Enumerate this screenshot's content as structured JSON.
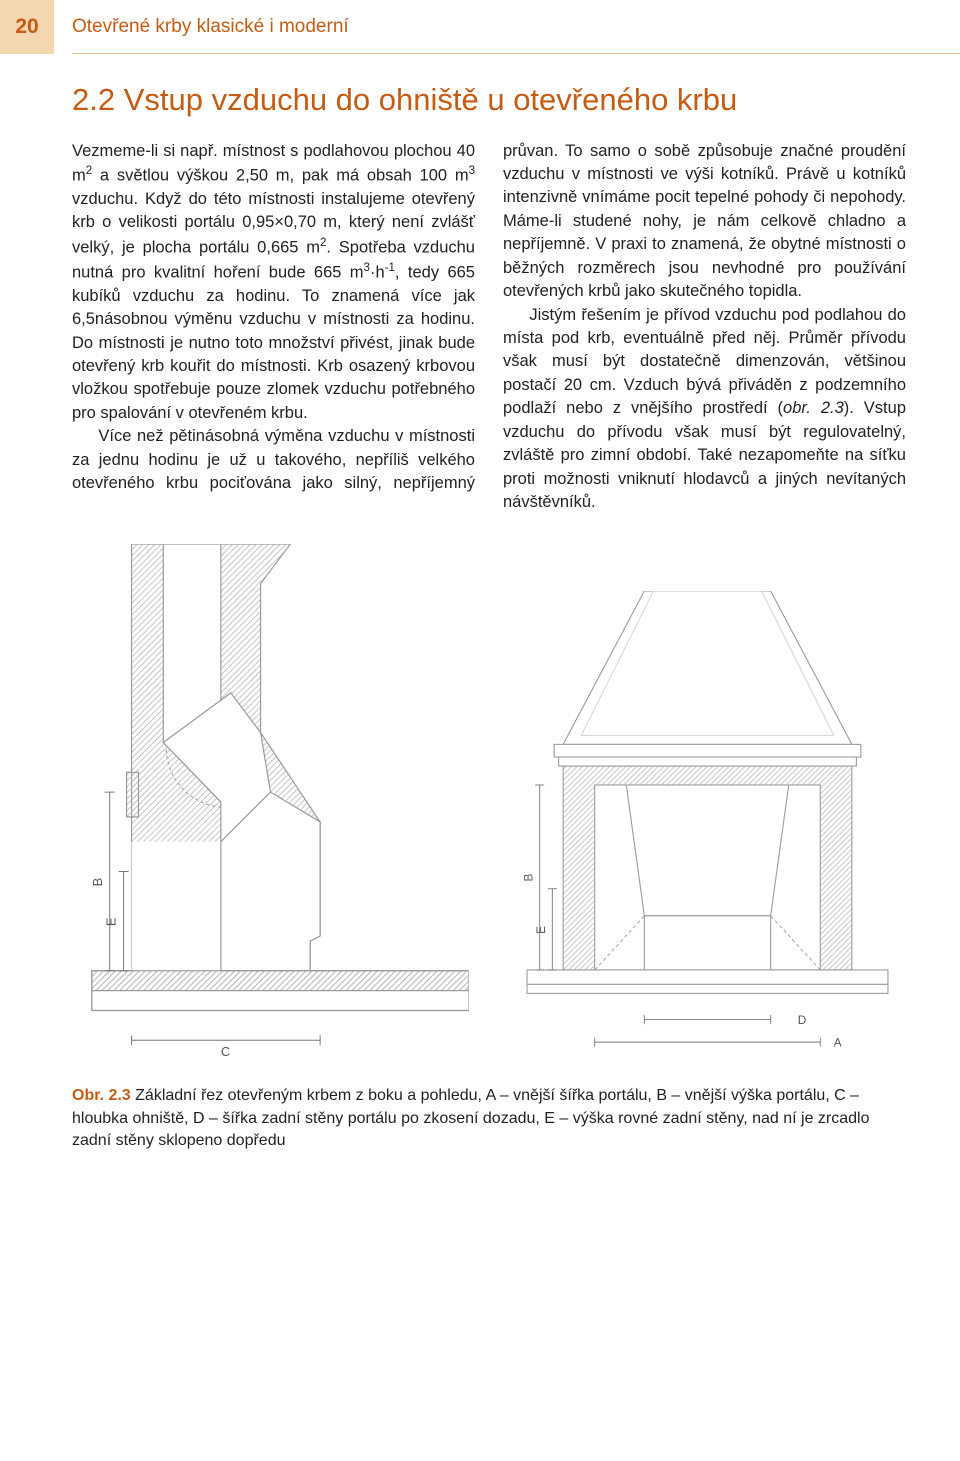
{
  "page_number": "20",
  "book_title": "Otevřené krby klasické i moderní",
  "section_title": "2.2  Vstup vzduchu do ohniště u otevřeného krbu",
  "body_html": "Vezmeme-li si např. místnost s podlahovou plochou 40 m<sup>2</sup> a světlou výškou 2,50 m, pak má obsah 100 m<sup>3</sup> vzduchu. Když do této místnosti instalujeme otevřený krb o velikosti portálu 0,95×0,70 m, který není zvlášť velký, je plocha portálu 0,665 m<sup>2</sup>. Spotřeba vzduchu nutná pro kvalitní hoření bude 665 m<sup>3</sup>·h<sup>-1</sup>, tedy 665 kubíků vzduchu za hodinu. To znamená více jak 6,5násobnou výměnu vzduchu v místnosti za hodinu. Do místnosti je nutno toto množství přivést, jinak bude otevřený krb kouřit do místnosti. Krb osazený krbovou vložkou spotřebuje pouze zlomek vzduchu potřebného pro spalování v otevřeném krbu.",
  "body2_html": "Více než pětinásobná výměna vzduchu v místnosti za jednu hodinu je už u takového, nepříliš velkého otevřeného krbu pociťována jako silný, nepříjemný průvan. To samo o sobě způsobuje značné proudění vzduchu v místnosti ve výši kotníků. Právě u kotníků intenzivně vnímáme pocit tepelné pohody či nepohody. Máme-li studené nohy, je nám celkově chladno a nepříjemně. V praxi to znamená, že obytné místnosti o běžných rozměrech jsou nevhodné pro používání otevřených krbů jako skutečného topidla.",
  "body3_html": "Jistým řešením je přívod vzduchu pod podlahou do místa pod krb, eventuálně před něj. Průměr přívodu však musí být dostatečně dimenzován, většinou postačí 20 cm. Vzduch bývá přiváděn z podzemního podlaží nebo z vnějšího prostředí (<i>obr. 2.3</i>). Vstup vzduchu do přívodu však musí být regulovatelný, zvláště pro zimní období. Také nezapomeňte na síťku proti možnosti vniknutí hlodavců a jiných nevítaných návštěvníků.",
  "caption_ref": "Obr. 2.3",
  "caption_text": "Základní řez otevřeným krbem z boku a pohledu, A – vnější šířka portálu, B – vnější výška portálu, C – hloubka ohniště, D – šířka zadní stěny portálu po zkosení dozadu, E – výška rovné zadní stěny, nad ní je zrcadlo zadní stěny sklopeno dopředu",
  "colors": {
    "accent": "#c75b12",
    "tab_bg": "#f3d7b0",
    "rule": "#e6c38f",
    "diagram_line": "#9a9a9a",
    "diagram_fill_light": "#fafafa",
    "hatch": "#bdbdbd"
  },
  "diagram": {
    "type": "technical-section",
    "left": {
      "labels": [
        "B",
        "E",
        "C"
      ],
      "view": "side"
    },
    "right": {
      "labels": [
        "B",
        "E",
        "D",
        "A"
      ],
      "view": "front"
    },
    "stroke_width": 1.2
  }
}
